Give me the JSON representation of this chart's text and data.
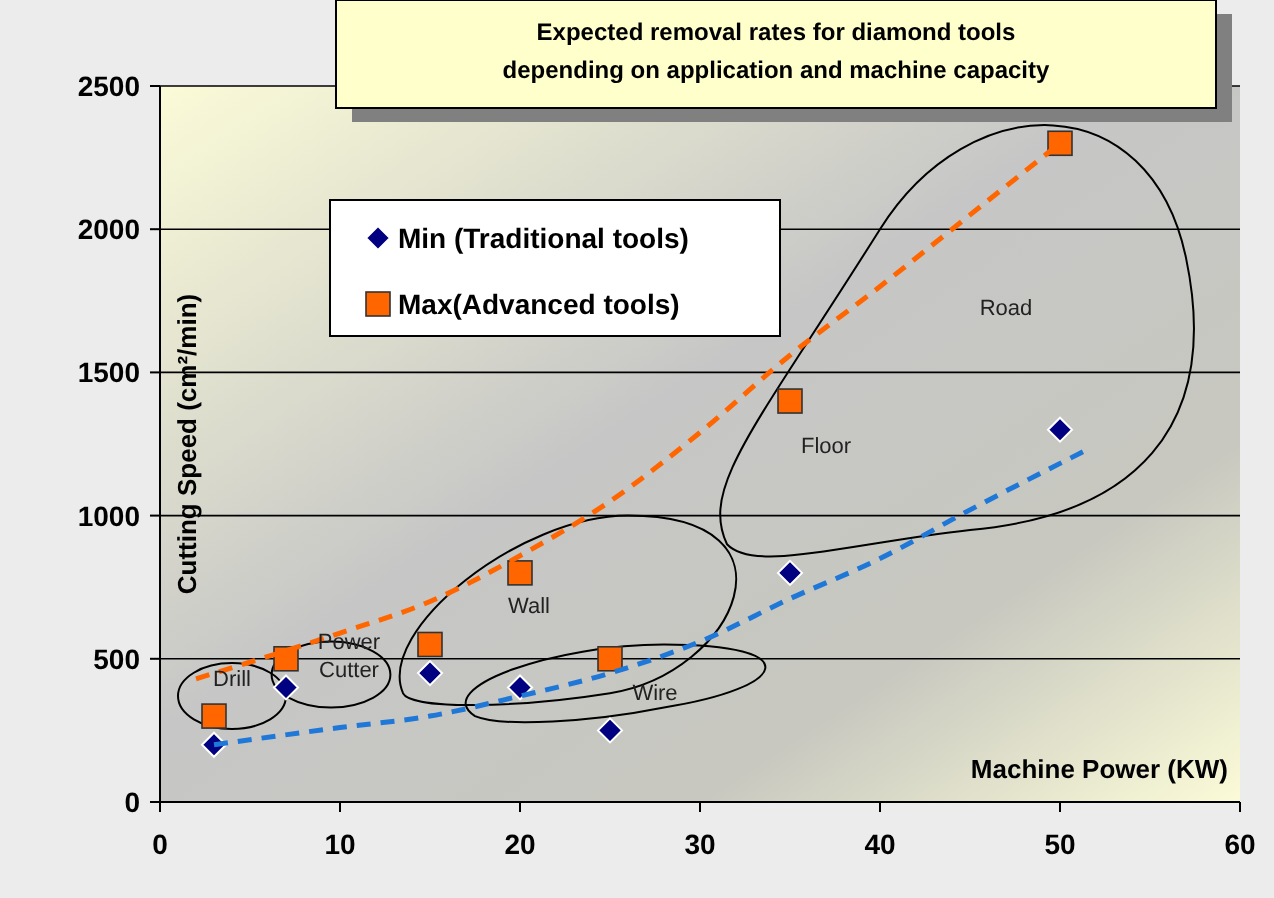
{
  "chart_data": {
    "type": "scatter",
    "title": "Expected removal rates for diamond tools\ndepending on application and machine capacity",
    "xlabel": "Machine Power (KW)",
    "ylabel": "Cutting Speed (cm²/min)",
    "xlim": [
      0,
      60
    ],
    "xticks": [
      0,
      10,
      20,
      30,
      40,
      50,
      60
    ],
    "ylim": [
      0,
      2500
    ],
    "yticks": [
      0,
      500,
      1000,
      1500,
      2000,
      2500
    ],
    "grid": "y",
    "legend": "top left",
    "series": [
      {
        "name": "Min (Traditional tools)",
        "color": "#000080",
        "marker": "diamond",
        "x": [
          3,
          7,
          15,
          20,
          25,
          35,
          50
        ],
        "values": [
          200,
          400,
          450,
          400,
          250,
          800,
          1300
        ]
      },
      {
        "name": "Max(Advanced tools)",
        "color": "#ff6600",
        "marker": "square",
        "x": [
          3,
          7,
          15,
          20,
          25,
          35,
          50
        ],
        "values": [
          300,
          500,
          550,
          800,
          500,
          1400,
          2300
        ]
      },
      {
        "type": "line",
        "color": "#ff6600",
        "line_style": "dashed",
        "x": [
          2,
          10,
          15,
          20,
          25,
          30,
          35,
          40,
          45,
          50
        ],
        "values": [
          430,
          590,
          700,
          860,
          1050,
          1290,
          1560,
          1800,
          2050,
          2300
        ]
      },
      {
        "type": "line",
        "color": "#1f78d8",
        "line_style": "dashed",
        "x": [
          3,
          10,
          15,
          20,
          25,
          30,
          35,
          40,
          45,
          51.5
        ],
        "values": [
          200,
          260,
          300,
          370,
          450,
          560,
          710,
          850,
          1020,
          1230
        ]
      }
    ],
    "annotations": [
      "Drill",
      "Power\nCutter",
      "Wall",
      "Wire",
      "Floor",
      "Road"
    ]
  }
}
